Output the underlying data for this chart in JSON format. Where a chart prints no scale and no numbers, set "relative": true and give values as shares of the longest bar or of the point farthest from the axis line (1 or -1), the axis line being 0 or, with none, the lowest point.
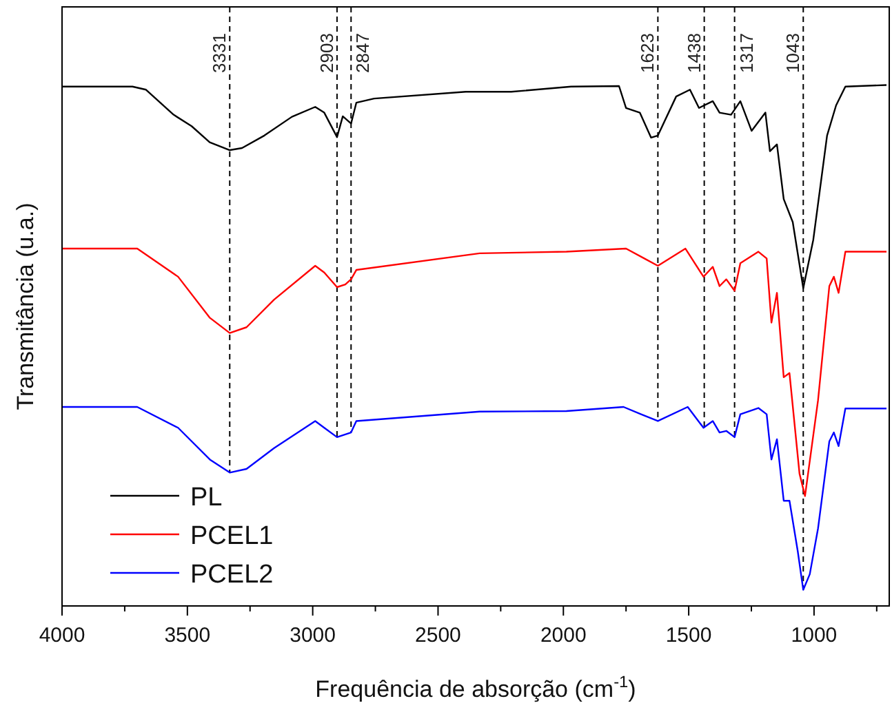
{
  "chart_data": {
    "type": "line",
    "relative": true,
    "xlabel": "Frequência de absorção (cm$^{-1}$)",
    "ylabel": "Transmitância (u.a.)",
    "xlim": [
      4000,
      700
    ],
    "xticks": [
      4000,
      {
        "value": 3750,
        "label": null
      },
      3500,
      {
        "value": 3250,
        "label": null
      },
      3000,
      {
        "value": 2750,
        "label": null
      },
      2500,
      {
        "value": 2250,
        "label": null
      },
      2000,
      {
        "value": 1750,
        "label": null
      },
      1500,
      {
        "value": 1250,
        "label": null
      },
      1000,
      {
        "value": 750,
        "label": null
      }
    ],
    "tick_labels": "x",
    "legend": "bottom left",
    "line_style": "solid",
    "marker": "none",
    "grid": false,
    "series": [
      {
        "name": "PL",
        "color": "#000000",
        "x": [
          4000,
          3719,
          3665,
          3555,
          3483,
          3411,
          3331,
          3282,
          3193,
          3083,
          2990,
          2954,
          2903,
          2880,
          2847,
          2826,
          2755,
          2389,
          2208,
          1969,
          1778,
          1750,
          1695,
          1650,
          1623,
          1550,
          1495,
          1459,
          1404,
          1377,
          1331,
          1294,
          1249,
          1194,
          1176,
          1148,
          1121,
          1085,
          1043,
          1003,
          948,
          912,
          875,
          711
        ],
        "values": [
          0.997,
          0.997,
          0.991,
          0.943,
          0.921,
          0.89,
          0.875,
          0.879,
          0.903,
          0.939,
          0.958,
          0.947,
          0.9,
          0.94,
          0.926,
          0.966,
          0.974,
          0.987,
          0.987,
          0.997,
          0.998,
          0.956,
          0.947,
          0.899,
          0.903,
          0.978,
          0.991,
          0.956,
          0.969,
          0.947,
          0.943,
          0.969,
          0.912,
          0.947,
          0.873,
          0.886,
          0.781,
          0.737,
          0.61,
          0.703,
          0.903,
          0.961,
          0.997,
          1.0
        ]
      },
      {
        "name": "PCEL1",
        "color": "#ff0000",
        "x": [
          4000,
          3700,
          3537,
          3410,
          3331,
          3264,
          3154,
          2990,
          2954,
          2903,
          2870,
          2847,
          2826,
          2334,
          1988,
          1750,
          1677,
          1623,
          1513,
          1441,
          1404,
          1377,
          1350,
          1317,
          1294,
          1222,
          1189,
          1170,
          1148,
          1121,
          1098,
          1058,
          1036,
          984,
          939,
          921,
          902,
          875,
          711
        ],
        "values": [
          0.686,
          0.686,
          0.632,
          0.553,
          0.524,
          0.535,
          0.588,
          0.653,
          0.64,
          0.612,
          0.617,
          0.627,
          0.645,
          0.677,
          0.68,
          0.686,
          0.667,
          0.653,
          0.686,
          0.632,
          0.651,
          0.614,
          0.627,
          0.605,
          0.658,
          0.68,
          0.667,
          0.544,
          0.601,
          0.439,
          0.447,
          0.254,
          0.211,
          0.395,
          0.614,
          0.632,
          0.601,
          0.68,
          0.68
        ]
      },
      {
        "name": "PCEL2",
        "color": "#0000ff",
        "x": [
          4000,
          3700,
          3537,
          3410,
          3331,
          3264,
          3154,
          2990,
          2954,
          2903,
          2847,
          2826,
          2334,
          1988,
          1760,
          1690,
          1623,
          1504,
          1441,
          1404,
          1377,
          1350,
          1317,
          1294,
          1222,
          1189,
          1170,
          1148,
          1121,
          1098,
          1065,
          1043,
          1017,
          984,
          939,
          921,
          902,
          875,
          711
        ],
        "values": [
          0.382,
          0.382,
          0.342,
          0.281,
          0.256,
          0.263,
          0.303,
          0.355,
          0.342,
          0.324,
          0.333,
          0.355,
          0.373,
          0.374,
          0.382,
          0.368,
          0.355,
          0.382,
          0.342,
          0.355,
          0.333,
          0.336,
          0.324,
          0.368,
          0.38,
          0.368,
          0.281,
          0.32,
          0.202,
          0.202,
          0.105,
          0.031,
          0.061,
          0.149,
          0.316,
          0.333,
          0.307,
          0.379,
          0.379
        ]
      }
    ],
    "ref_lines": [
      {
        "axis": "x",
        "value": 3331,
        "label": "3331",
        "color": "#000000",
        "line_style": "dashed"
      },
      {
        "axis": "x",
        "value": 2903,
        "label": "2903",
        "color": "#000000",
        "line_style": "dashed"
      },
      {
        "axis": "x",
        "value": 2847,
        "label": "2847",
        "color": "#000000",
        "line_style": "dashed"
      },
      {
        "axis": "x",
        "value": 1623,
        "label": "1623",
        "color": "#000000",
        "line_style": "dashed"
      },
      {
        "axis": "x",
        "value": 1438,
        "label": "1438",
        "color": "#000000",
        "line_style": "dashed"
      },
      {
        "axis": "x",
        "value": 1317,
        "label": "1317",
        "color": "#000000",
        "line_style": "dashed"
      },
      {
        "axis": "x",
        "value": 1043,
        "label": "1043",
        "color": "#000000",
        "line_style": "dashed"
      }
    ]
  }
}
